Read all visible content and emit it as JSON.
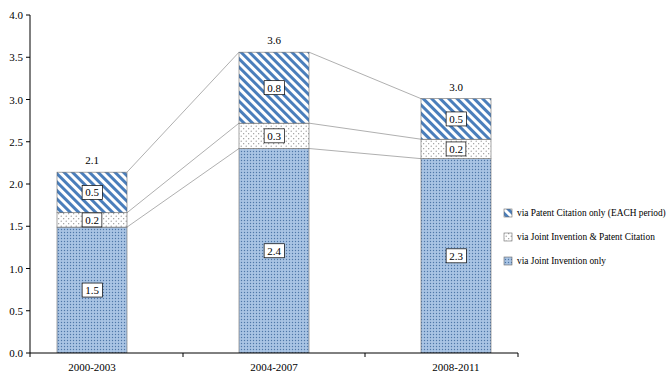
{
  "chart_data": {
    "type": "bar",
    "stacked": true,
    "data_labels": true,
    "grid": false,
    "legend": "right",
    "categories": [
      "2000-2003",
      "2004-2007",
      "2008-2011"
    ],
    "series": [
      {
        "name": "via Joint Invention only",
        "color": "#a9c4e4",
        "values": [
          1.49,
          2.42,
          2.3
        ],
        "value_labels": [
          "1.5",
          "2.4",
          "2.3"
        ]
      },
      {
        "name": "via Joint Invention & Patent Citation",
        "color": "#ffffff",
        "values": [
          0.17,
          0.3,
          0.23
        ],
        "value_labels": [
          "0.2",
          "0.3",
          "0.2"
        ]
      },
      {
        "name": "via Patent Citation only (EACH period)",
        "color": "#4a7ebb",
        "values": [
          0.48,
          0.84,
          0.48
        ],
        "value_labels": [
          "0.5",
          "0.8",
          "0.5"
        ]
      }
    ],
    "totals": [
      2.14,
      3.56,
      3.01
    ],
    "total_labels": [
      "2.1",
      "3.6",
      "3.0"
    ],
    "ylim": [
      0,
      4
    ],
    "yticks": [
      {
        "value": 0,
        "label": "0.0"
      },
      0.5,
      {
        "value": 1,
        "label": "1.0"
      },
      1.5,
      {
        "value": 2,
        "label": "2.0"
      },
      2.5,
      {
        "value": 3,
        "label": "3.0"
      },
      3.5,
      {
        "value": 4,
        "label": "4.0"
      }
    ]
  }
}
